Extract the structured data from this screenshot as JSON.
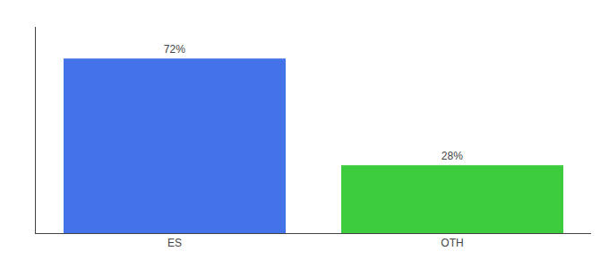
{
  "chart_data": {
    "type": "bar",
    "categories": [
      "ES",
      "OTH"
    ],
    "values": [
      72,
      28
    ],
    "value_labels": [
      "72%",
      "28%"
    ],
    "data_labels": true,
    "colors": [
      "#4472e8",
      "#3dcc3d"
    ],
    "ylim": [
      0,
      85
    ],
    "yticks": [],
    "tick_labels": "x",
    "grid": false
  }
}
